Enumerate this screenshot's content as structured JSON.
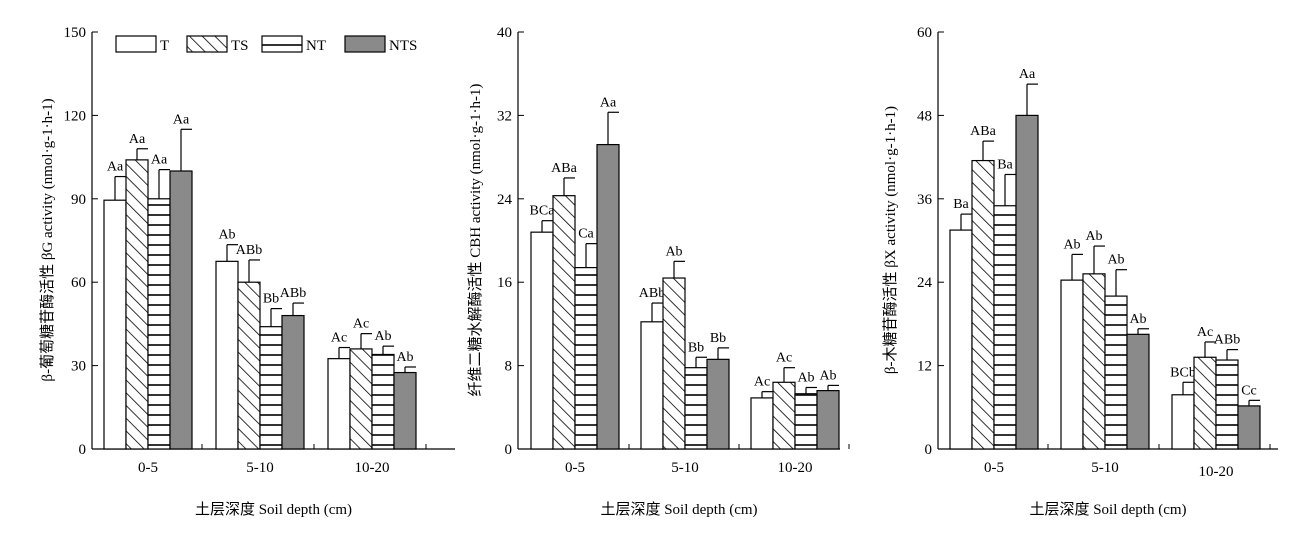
{
  "colors": {
    "NTS": "#8a8a8a",
    "outline": "#000000",
    "background": "#ffffff"
  },
  "legend": [
    {
      "key": "T",
      "label": "T",
      "fill": "open"
    },
    {
      "key": "TS",
      "label": "TS",
      "fill": "diagonal-hatch"
    },
    {
      "key": "NT",
      "label": "NT",
      "fill": "horizontal-lines"
    },
    {
      "key": "NTS",
      "label": "NTS",
      "fill": "gray"
    }
  ],
  "chart_data": [
    {
      "type": "bar",
      "panel": "left",
      "ylabel": "β-葡萄糖苷酶活性 βG activity (nmol·g-1·h-1)",
      "xlabel": "土层深度 Soil depth (cm)",
      "ylim": [
        0,
        150
      ],
      "yticks": [
        "0",
        "30",
        "60",
        "90",
        "120",
        "150"
      ],
      "categories": [
        "0-5",
        "5-10",
        "10-20"
      ],
      "series": [
        {
          "name": "T",
          "values": [
            89.5,
            67.5,
            32.5
          ],
          "errors": [
            8.5,
            6,
            4
          ],
          "labels": [
            "Aa",
            "Ab",
            "Ac"
          ]
        },
        {
          "name": "TS",
          "values": [
            104,
            60,
            36
          ],
          "errors": [
            4,
            8,
            5.5
          ],
          "labels": [
            "Aa",
            "ABb",
            "Ac"
          ]
        },
        {
          "name": "NT",
          "values": [
            90,
            44,
            34
          ],
          "errors": [
            10.5,
            6.5,
            3
          ],
          "labels": [
            "Aa",
            "Bb",
            "Ab"
          ]
        },
        {
          "name": "NTS",
          "values": [
            100,
            48,
            27.5
          ],
          "errors": [
            15,
            4.5,
            2
          ],
          "labels": [
            "Aa",
            "ABb",
            "Ab"
          ]
        }
      ]
    },
    {
      "type": "bar",
      "panel": "middle",
      "ylabel": "纤维二糖水解酶活性 CBH activity (nmol·g-1·h-1)",
      "xlabel": "土层深度 Soil depth (cm)",
      "ylim": [
        0,
        40
      ],
      "yticks": [
        "0",
        "8",
        "16",
        "24",
        "32",
        "40"
      ],
      "categories": [
        "0-5",
        "5-10",
        "10-20"
      ],
      "series": [
        {
          "name": "T",
          "values": [
            20.8,
            12.2,
            4.9
          ],
          "errors": [
            1.1,
            1.8,
            0.6
          ],
          "labels": [
            "BCa",
            "ABb",
            "Ac"
          ]
        },
        {
          "name": "TS",
          "values": [
            24.3,
            16.4,
            6.4
          ],
          "errors": [
            1.7,
            1.6,
            1.4
          ],
          "labels": [
            "ABa",
            "Ab",
            "Ac"
          ]
        },
        {
          "name": "NT",
          "values": [
            17.4,
            7.8,
            5.3
          ],
          "errors": [
            2.3,
            1,
            0.6
          ],
          "labels": [
            "Ca",
            "Bb",
            "Ab"
          ]
        },
        {
          "name": "NTS",
          "values": [
            29.2,
            8.6,
            5.6
          ],
          "errors": [
            3.1,
            1.1,
            0.5
          ],
          "labels": [
            "Aa",
            "Bb",
            "Ab"
          ]
        }
      ]
    },
    {
      "type": "bar",
      "panel": "right",
      "ylabel": "β-木糖苷酶活性 βX activity (nmol·g-1·h-1)",
      "xlabel": "土层深度 Soil depth (cm)",
      "ylim": [
        0,
        60
      ],
      "yticks": [
        "0",
        "12",
        "24",
        "36",
        "48",
        "60"
      ],
      "categories": [
        "0-5",
        "5-10",
        "10-20"
      ],
      "series": [
        {
          "name": "T",
          "values": [
            31.5,
            24.3,
            7.8
          ],
          "errors": [
            2.3,
            3.7,
            1.8
          ],
          "labels": [
            "Ba",
            "Ab",
            "BCb"
          ]
        },
        {
          "name": "TS",
          "values": [
            41.5,
            25.2,
            13.2
          ],
          "errors": [
            2.8,
            4,
            2.2
          ],
          "labels": [
            "ABa",
            "Ab",
            "Ac"
          ]
        },
        {
          "name": "NT",
          "values": [
            35,
            22,
            12.8
          ],
          "errors": [
            4.5,
            3.8,
            1.5
          ],
          "labels": [
            "Ba",
            "Ab",
            "ABb"
          ]
        },
        {
          "name": "NTS",
          "values": [
            48,
            16.5,
            6.2
          ],
          "errors": [
            4.5,
            0.8,
            0.8
          ],
          "labels": [
            "Aa",
            "Ab",
            "Cc"
          ]
        }
      ]
    }
  ]
}
